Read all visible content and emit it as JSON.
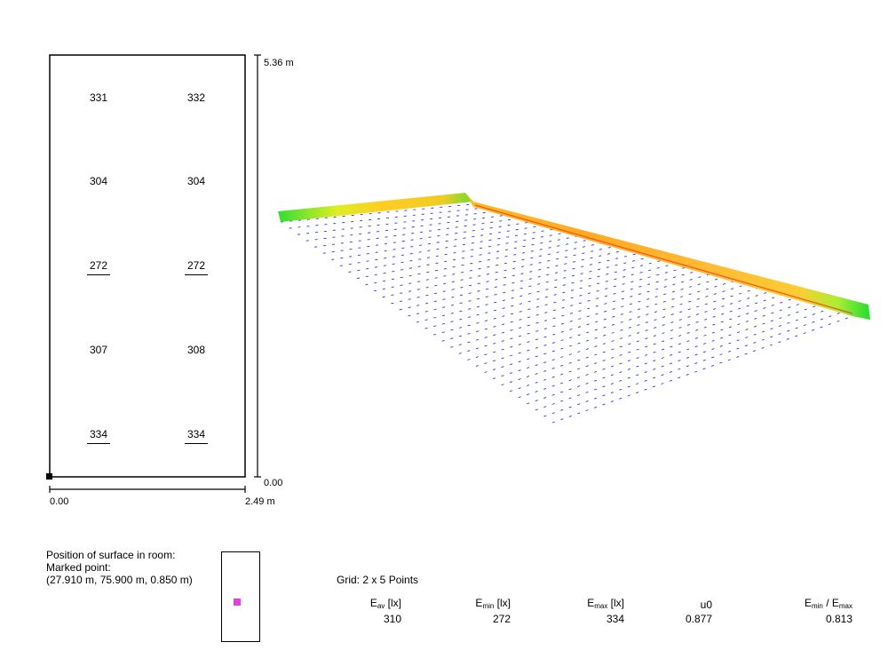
{
  "plan": {
    "grid_values": [
      {
        "row": 1,
        "left": "331",
        "right": "332"
      },
      {
        "row": 2,
        "left": "304",
        "right": "304"
      },
      {
        "row": 3,
        "left": "272",
        "right": "272"
      },
      {
        "row": 4,
        "left": "307",
        "right": "308"
      },
      {
        "row": 5,
        "left": "334",
        "right": "334"
      }
    ],
    "y_max_label": "5.36 m",
    "y_min_label": "0.00",
    "x_min_label": "0.00",
    "x_max_label": "2.49 m"
  },
  "position": {
    "line1": "Position of surface in room:",
    "line2": "Marked point:",
    "line3": "(27.910 m, 75.900 m, 0.850 m)",
    "marker_color": "#e040e0"
  },
  "stats": {
    "grid_label": "Grid: 2 x 5 Points",
    "eav_main": "E",
    "eav_sub": "av",
    "eav_unit": " [lx]",
    "eav_value": "310",
    "emin_main": "E",
    "emin_sub": "min",
    "emin_unit": " [lx]",
    "emin_value": "272",
    "emax_main": "E",
    "emax_sub": "max",
    "emax_unit": " [lx]",
    "emax_value": "334",
    "u0_label": "u0",
    "u0_value": "0.877",
    "ratio_a": "E",
    "ratio_a_sub": "min",
    "ratio_sep": " / E",
    "ratio_b_sub": "max",
    "ratio_value": "0.813"
  },
  "render3d": {
    "wall_colors": [
      "#33dd33",
      "#ddee22",
      "#ffbb22",
      "#ffaa22",
      "#ffcc33",
      "#ffaa22",
      "#33dd33"
    ],
    "grid_color": "#3333ee"
  }
}
